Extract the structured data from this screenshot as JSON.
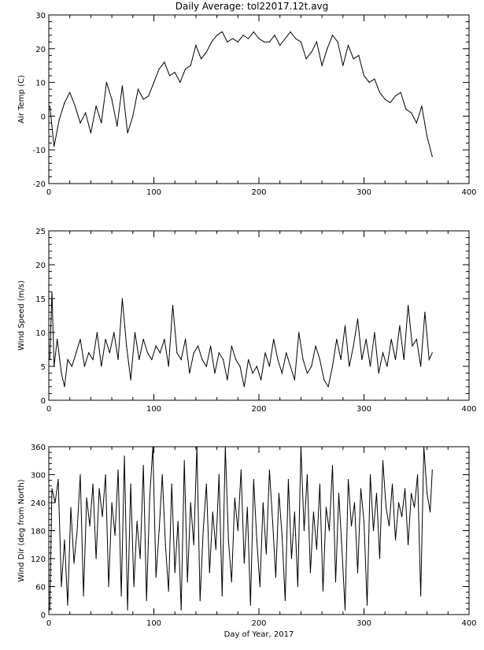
{
  "figure": {
    "title": "Daily Average: tol22017.12t.avg"
  },
  "chart_data": [
    {
      "type": "line",
      "id": "air-temp",
      "title": "Daily Average: tol22017.12t.avg",
      "xlabel": "",
      "ylabel": "Air Temp (C)",
      "xlim": [
        0,
        400
      ],
      "ylim": [
        -20,
        30
      ],
      "xticks": [
        0,
        100,
        200,
        300,
        400
      ],
      "yticks": [
        -20,
        -10,
        0,
        10,
        20,
        30
      ],
      "grid": false,
      "line_color": "#000000",
      "x": [
        1,
        5,
        10,
        15,
        20,
        25,
        30,
        35,
        40,
        45,
        50,
        55,
        60,
        65,
        70,
        75,
        80,
        85,
        90,
        95,
        100,
        105,
        110,
        115,
        120,
        125,
        130,
        135,
        140,
        145,
        150,
        155,
        160,
        165,
        170,
        175,
        180,
        185,
        190,
        195,
        200,
        205,
        210,
        215,
        220,
        225,
        230,
        235,
        240,
        245,
        250,
        255,
        260,
        265,
        270,
        275,
        280,
        285,
        290,
        295,
        300,
        305,
        310,
        315,
        320,
        325,
        330,
        335,
        340,
        345,
        350,
        355,
        360,
        365
      ],
      "values": [
        3,
        -9,
        -1,
        4,
        7,
        3,
        -2,
        1,
        -5,
        3,
        -2,
        10,
        5,
        -3,
        9,
        -5,
        0,
        8,
        5,
        6,
        10,
        14,
        16,
        12,
        13,
        10,
        14,
        15,
        21,
        17,
        19,
        22,
        24,
        25,
        22,
        23,
        22,
        24,
        23,
        25,
        23,
        22,
        22,
        24,
        21,
        23,
        25,
        23,
        22,
        17,
        19,
        22,
        15,
        20,
        24,
        22,
        15,
        21,
        17,
        18,
        12,
        10,
        11,
        7,
        5,
        4,
        6,
        7,
        2,
        1,
        -2,
        3,
        -6,
        -12
      ]
    },
    {
      "type": "line",
      "id": "wind-speed",
      "title": "",
      "xlabel": "",
      "ylabel": "Wind Speed (m/s)",
      "xlim": [
        0,
        400
      ],
      "ylim": [
        0,
        25
      ],
      "xticks": [
        0,
        100,
        200,
        300,
        400
      ],
      "yticks": [
        0,
        5,
        10,
        15,
        20,
        25
      ],
      "grid": false,
      "line_color": "#000000",
      "x": [
        1,
        3,
        5,
        8,
        12,
        15,
        18,
        22,
        26,
        30,
        34,
        38,
        42,
        46,
        50,
        54,
        58,
        62,
        66,
        70,
        74,
        78,
        82,
        86,
        90,
        94,
        98,
        102,
        106,
        110,
        114,
        118,
        122,
        126,
        130,
        134,
        138,
        142,
        146,
        150,
        154,
        158,
        162,
        166,
        170,
        174,
        178,
        182,
        186,
        190,
        194,
        198,
        202,
        206,
        210,
        214,
        218,
        222,
        226,
        230,
        234,
        238,
        242,
        246,
        250,
        254,
        258,
        262,
        266,
        270,
        274,
        278,
        282,
        286,
        290,
        294,
        298,
        302,
        306,
        310,
        314,
        318,
        322,
        326,
        330,
        334,
        338,
        342,
        346,
        350,
        354,
        358,
        362,
        365
      ],
      "values": [
        6,
        16,
        5,
        9,
        4,
        2,
        6,
        5,
        7,
        9,
        5,
        7,
        6,
        10,
        5,
        9,
        7,
        10,
        6,
        15,
        8,
        3,
        10,
        6,
        9,
        7,
        6,
        8,
        7,
        9,
        5,
        14,
        7,
        6,
        9,
        4,
        7,
        8,
        6,
        5,
        8,
        4,
        7,
        6,
        3,
        8,
        6,
        5,
        2,
        6,
        4,
        5,
        3,
        7,
        5,
        9,
        6,
        4,
        7,
        5,
        3,
        10,
        6,
        4,
        5,
        8,
        6,
        3,
        2,
        5,
        9,
        6,
        11,
        5,
        8,
        12,
        6,
        9,
        5,
        10,
        4,
        7,
        5,
        9,
        6,
        11,
        6,
        14,
        8,
        9,
        5,
        13,
        6,
        7
      ]
    },
    {
      "type": "line",
      "id": "wind-dir",
      "title": "",
      "xlabel": "Day of Year, 2017",
      "ylabel": "Wind Dir (deg from North)",
      "xlim": [
        0,
        400
      ],
      "ylim": [
        0,
        360
      ],
      "xticks": [
        0,
        100,
        200,
        300,
        400
      ],
      "yticks": [
        0,
        60,
        120,
        180,
        240,
        300,
        360
      ],
      "grid": false,
      "line_color": "#000000",
      "x": [
        1,
        3,
        6,
        9,
        12,
        15,
        18,
        21,
        24,
        27,
        30,
        33,
        36,
        39,
        42,
        45,
        48,
        51,
        54,
        57,
        60,
        63,
        66,
        69,
        72,
        75,
        78,
        81,
        84,
        87,
        90,
        93,
        96,
        99,
        102,
        105,
        108,
        111,
        114,
        117,
        120,
        123,
        126,
        129,
        132,
        135,
        138,
        141,
        144,
        147,
        150,
        153,
        156,
        159,
        162,
        165,
        168,
        171,
        174,
        177,
        180,
        183,
        186,
        189,
        192,
        195,
        198,
        201,
        204,
        207,
        210,
        213,
        216,
        219,
        222,
        225,
        228,
        231,
        234,
        237,
        240,
        243,
        246,
        249,
        252,
        255,
        258,
        261,
        264,
        267,
        270,
        273,
        276,
        279,
        282,
        285,
        288,
        291,
        294,
        297,
        300,
        303,
        306,
        309,
        312,
        315,
        318,
        321,
        324,
        327,
        330,
        333,
        336,
        339,
        342,
        345,
        348,
        351,
        354,
        357,
        360,
        363,
        365
      ],
      "values": [
        10,
        270,
        240,
        290,
        60,
        160,
        20,
        230,
        110,
        180,
        300,
        40,
        250,
        190,
        280,
        120,
        270,
        210,
        300,
        60,
        240,
        170,
        310,
        40,
        340,
        10,
        280,
        60,
        200,
        120,
        320,
        30,
        250,
        360,
        80,
        180,
        300,
        150,
        50,
        280,
        90,
        200,
        10,
        330,
        70,
        240,
        150,
        360,
        30,
        180,
        280,
        90,
        220,
        140,
        300,
        40,
        360,
        160,
        70,
        250,
        180,
        310,
        110,
        230,
        20,
        290,
        160,
        60,
        240,
        130,
        310,
        200,
        80,
        260,
        170,
        30,
        290,
        120,
        220,
        60,
        360,
        180,
        300,
        90,
        220,
        140,
        280,
        50,
        230,
        180,
        320,
        70,
        260,
        140,
        10,
        290,
        190,
        240,
        90,
        270,
        200,
        20,
        300,
        180,
        260,
        120,
        330,
        230,
        190,
        280,
        160,
        240,
        210,
        270,
        150,
        260,
        230,
        300,
        40,
        360,
        260,
        220,
        310
      ]
    }
  ]
}
